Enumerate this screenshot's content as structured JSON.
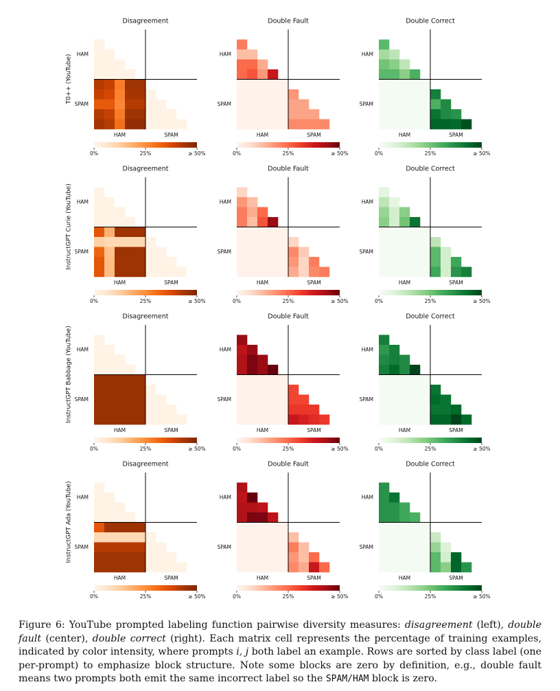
{
  "figure": {
    "columns": [
      {
        "title": "Disagreement",
        "colors": [
          "#fff5eb",
          "#fee6ce",
          "#fdd0a2",
          "#fdae6b",
          "#fd8d3c",
          "#f16913",
          "#d94801",
          "#a63603",
          "#7f2704"
        ]
      },
      {
        "title": "Double Fault",
        "colors": [
          "#fff5f0",
          "#fee0d2",
          "#fcbba1",
          "#fc9272",
          "#fb6a4a",
          "#ef3b2c",
          "#cb181d",
          "#a50f15",
          "#67000d"
        ]
      },
      {
        "title": "Double Correct",
        "colors": [
          "#f7fcf5",
          "#e5f5e0",
          "#c7e9c0",
          "#a1d99b",
          "#74c476",
          "#41ab5d",
          "#238b45",
          "#006d2c",
          "#00441b"
        ]
      }
    ],
    "classes": [
      "HAM",
      "SPAM"
    ],
    "colorbar": {
      "lim": [
        0,
        50
      ],
      "ticks": [
        {
          "value": 0,
          "label": "0%"
        },
        {
          "value": 25,
          "label": "25%"
        },
        {
          "value": 50,
          "label": "≥ 50%"
        }
      ]
    },
    "rows": [
      {
        "label": "T0++ (YouTube)",
        "panels": [
          {
            "cells": [
              [
                1
              ],
              [
                1,
                1
              ],
              [
                1,
                1,
                1
              ],
              [
                1,
                1,
                1,
                1
              ],
              [
                42,
                40,
                28,
                45,
                45
              ],
              [
                40,
                38,
                27,
                44,
                44,
                1
              ],
              [
                34,
                34,
                26,
                42,
                42,
                1,
                1
              ],
              [
                42,
                40,
                28,
                45,
                45,
                1,
                1,
                1
              ],
              [
                44,
                42,
                30,
                47,
                47,
                1,
                1,
                1,
                1
              ]
            ]
          },
          {
            "cells": [
              [
                22
              ],
              [
                12,
                12
              ],
              [
                25,
                25,
                15
              ],
              [
                25,
                28,
                18,
                38
              ],
              [
                1,
                1,
                1,
                1,
                1
              ],
              [
                1,
                1,
                1,
                1,
                1,
                18
              ],
              [
                1,
                1,
                1,
                1,
                1,
                16,
                16
              ],
              [
                1,
                1,
                1,
                1,
                1,
                16,
                16,
                16
              ],
              [
                1,
                1,
                1,
                1,
                1,
                20,
                20,
                20,
                20
              ]
            ]
          },
          {
            "cells": [
              [
                28
              ],
              [
                18,
                14
              ],
              [
                25,
                22,
                14
              ],
              [
                28,
                28,
                22,
                30
              ],
              [
                1,
                1,
                1,
                1,
                1
              ],
              [
                1,
                1,
                1,
                1,
                1,
                40
              ],
              [
                1,
                1,
                1,
                1,
                1,
                30,
                38
              ],
              [
                1,
                1,
                1,
                1,
                1,
                42,
                38,
                36
              ],
              [
                1,
                1,
                1,
                1,
                1,
                45,
                45,
                44,
                48
              ]
            ]
          }
        ]
      },
      {
        "label": "InstructGPT Curie (YouTube)",
        "panels": [
          {
            "cells": [
              [
                1
              ],
              [
                1,
                1
              ],
              [
                1,
                1,
                1
              ],
              [
                1,
                1,
                1,
                1
              ],
              [
                35,
                18,
                45,
                45,
                45
              ],
              [
                12,
                10,
                10,
                10,
                10,
                1
              ],
              [
                32,
                15,
                45,
                45,
                45,
                1,
                1
              ],
              [
                35,
                16,
                45,
                45,
                45,
                1,
                1,
                1
              ],
              [
                35,
                16,
                45,
                45,
                45,
                1,
                1,
                1,
                1
              ]
            ]
          },
          {
            "cells": [
              [
                8
              ],
              [
                18,
                12
              ],
              [
                22,
                15,
                25
              ],
              [
                22,
                12,
                28,
                45
              ],
              [
                1,
                1,
                1,
                1,
                1
              ],
              [
                1,
                1,
                1,
                1,
                1,
                8
              ],
              [
                1,
                1,
                1,
                1,
                1,
                20,
                10
              ],
              [
                1,
                1,
                1,
                1,
                1,
                18,
                8,
                22
              ],
              [
                1,
                1,
                1,
                1,
                1,
                15,
                8,
                20,
                22
              ]
            ]
          },
          {
            "cells": [
              [
                6
              ],
              [
                14,
                6
              ],
              [
                20,
                10,
                22
              ],
              [
                22,
                10,
                25,
                42
              ],
              [
                1,
                1,
                1,
                1,
                1
              ],
              [
                1,
                1,
                1,
                1,
                1,
                14
              ],
              [
                1,
                1,
                1,
                1,
                1,
                28,
                10
              ],
              [
                1,
                1,
                1,
                1,
                1,
                28,
                10,
                32
              ],
              [
                1,
                1,
                1,
                1,
                1,
                32,
                10,
                36,
                40
              ]
            ]
          }
        ]
      },
      {
        "label": "InstructGPT Babbage (YouTube)",
        "panels": [
          {
            "cells": [
              [
                1
              ],
              [
                1,
                1
              ],
              [
                1,
                1,
                1
              ],
              [
                1,
                1,
                1,
                1
              ],
              [
                46,
                46,
                46,
                46,
                46
              ],
              [
                46,
                46,
                46,
                46,
                46,
                1
              ],
              [
                46,
                46,
                46,
                46,
                46,
                1,
                1
              ],
              [
                46,
                46,
                46,
                46,
                46,
                1,
                1,
                1
              ],
              [
                46,
                46,
                46,
                46,
                46,
                1,
                1,
                1,
                1
              ]
            ]
          },
          {
            "cells": [
              [
                45
              ],
              [
                40,
                45
              ],
              [
                42,
                48,
                45
              ],
              [
                42,
                48,
                45,
                50
              ],
              [
                1,
                1,
                1,
                1,
                1
              ],
              [
                1,
                1,
                1,
                1,
                1,
                30
              ],
              [
                1,
                1,
                1,
                1,
                1,
                30,
                30
              ],
              [
                1,
                1,
                1,
                1,
                1,
                32,
                32,
                32
              ],
              [
                1,
                1,
                1,
                1,
                1,
                38,
                36,
                34,
                32
              ]
            ]
          },
          {
            "cells": [
              [
                40
              ],
              [
                35,
                40
              ],
              [
                38,
                40,
                38
              ],
              [
                40,
                44,
                38,
                50
              ],
              [
                1,
                1,
                1,
                1,
                1
              ],
              [
                1,
                1,
                1,
                1,
                1,
                42
              ],
              [
                1,
                1,
                1,
                1,
                1,
                44,
                42
              ],
              [
                1,
                1,
                1,
                1,
                1,
                42,
                42,
                44
              ],
              [
                1,
                1,
                1,
                1,
                1,
                45,
                45,
                50,
                44
              ]
            ]
          }
        ]
      },
      {
        "label": "InstructGPT Ada (YouTube)",
        "panels": [
          {
            "cells": [
              [
                1
              ],
              [
                1,
                1
              ],
              [
                1,
                1,
                1
              ],
              [
                1,
                1,
                1,
                1
              ],
              [
                35,
                45,
                45,
                45,
                45
              ],
              [
                10,
                10,
                10,
                10,
                10,
                1
              ],
              [
                42,
                42,
                42,
                42,
                42,
                1,
                1
              ],
              [
                45,
                45,
                45,
                45,
                45,
                1,
                1,
                1
              ],
              [
                45,
                45,
                45,
                45,
                45,
                1,
                1,
                1,
                1
              ]
            ]
          },
          {
            "cells": [
              [
                42
              ],
              [
                40,
                50
              ],
              [
                42,
                42,
                40
              ],
              [
                42,
                48,
                48,
                40
              ],
              [
                1,
                1,
                1,
                1,
                1
              ],
              [
                1,
                1,
                1,
                1,
                1,
                12
              ],
              [
                1,
                1,
                1,
                1,
                1,
                22,
                12
              ],
              [
                1,
                1,
                1,
                1,
                1,
                18,
                12,
                25
              ],
              [
                1,
                1,
                1,
                1,
                1,
                20,
                15,
                38,
                25
              ]
            ]
          },
          {
            "cells": [
              [
                36
              ],
              [
                36,
                42
              ],
              [
                36,
                36,
                32
              ],
              [
                36,
                36,
                32,
                30
              ],
              [
                1,
                1,
                1,
                1,
                1
              ],
              [
                1,
                1,
                1,
                1,
                1,
                12
              ],
              [
                1,
                1,
                1,
                1,
                1,
                20,
                8
              ],
              [
                1,
                1,
                1,
                1,
                1,
                28,
                10,
                45
              ],
              [
                1,
                1,
                1,
                1,
                1,
                28,
                22,
                45,
                36
              ]
            ]
          }
        ]
      }
    ]
  },
  "caption": [
    {
      "text": "Figure 6: YouTube prompted labeling function pairwise diversity measures: "
    },
    {
      "text": "disagreement",
      "style": "i"
    },
    {
      "text": " (left), "
    },
    {
      "text": "double fault",
      "style": "i"
    },
    {
      "text": " (center), "
    },
    {
      "text": "double correct",
      "style": "i"
    },
    {
      "text": " (right). Each matrix cell represents the percentage of training examples, indicated by color intensity, where prompts "
    },
    {
      "text": "i, j",
      "style": "i"
    },
    {
      "text": " both label an example. Rows are sorted by class label (one per-prompt) to emphasize block structure. Note some blocks are zero by definition, e.g., double fault means two prompts both emit the same incorrect label so the "
    },
    {
      "text": "SPAM/HAM",
      "style": "m"
    },
    {
      "text": " block is zero."
    }
  ]
}
